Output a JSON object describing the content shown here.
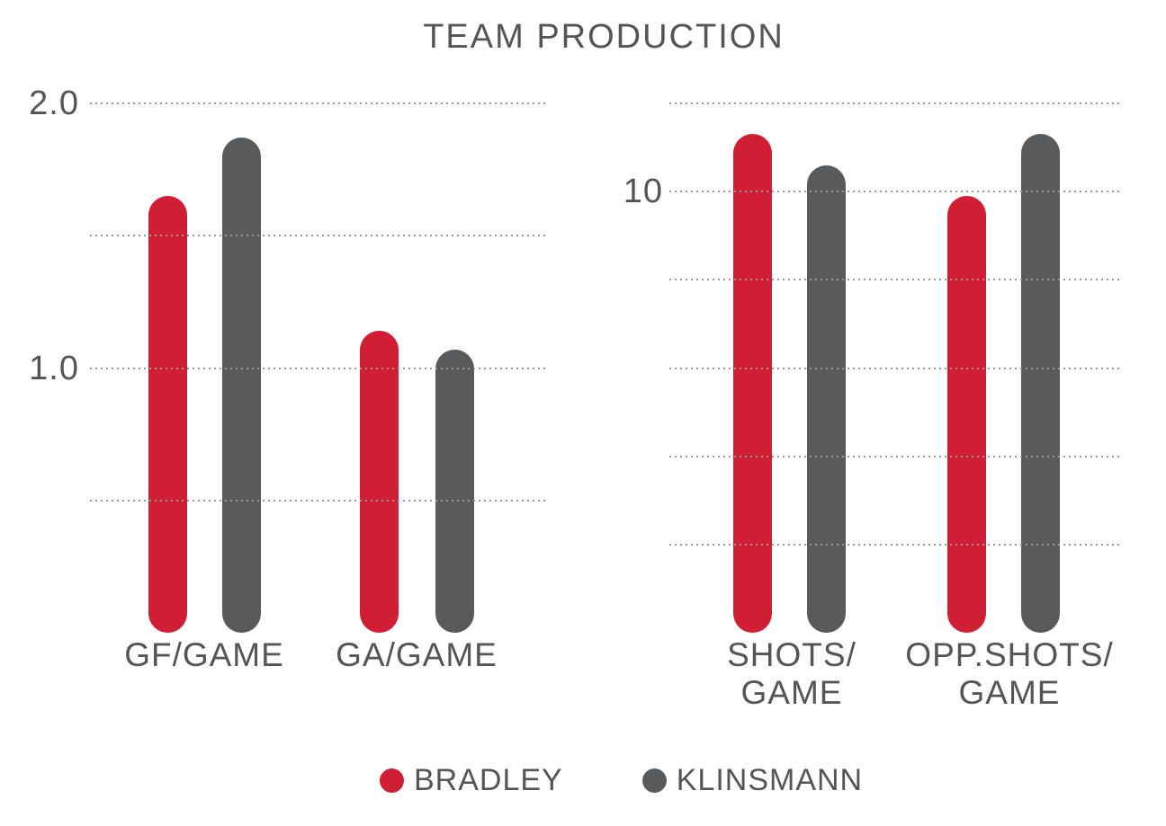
{
  "title": "TEAM PRODUCTION",
  "colors": {
    "bradley": "#d01e35",
    "klinsmann": "#595a5c",
    "gridline": "#98989a",
    "text": "#545557"
  },
  "legend": [
    {
      "label": "BRADLEY",
      "color": "#d01e35"
    },
    {
      "label": "KLINSMANN",
      "color": "#595a5c"
    }
  ],
  "chart_data": [
    {
      "type": "bar",
      "panel": "goals",
      "categories": [
        "GF/GAME",
        "GA/GAME"
      ],
      "category_lines": [
        [
          "GF/GAME"
        ],
        [
          "GA/GAME"
        ]
      ],
      "series": [
        {
          "name": "BRADLEY",
          "color": "#d01e35",
          "values": [
            1.65,
            1.14
          ]
        },
        {
          "name": "KLINSMANN",
          "color": "#595a5c",
          "values": [
            1.87,
            1.07
          ]
        }
      ],
      "ylim": [
        0,
        2.0
      ],
      "yticks": [
        2.0,
        1.5,
        1.0,
        0.5
      ],
      "ytick_labels": [
        {
          "value": 2.0,
          "label": "2.0"
        },
        {
          "value": 1.0,
          "label": "1.0"
        }
      ],
      "grid": "dotted-horizontal",
      "legend_position": "bottom"
    },
    {
      "type": "bar",
      "panel": "shots",
      "categories": [
        "SHOTS/GAME",
        "OPP.SHOTS/GAME"
      ],
      "category_lines": [
        [
          "SHOTS/",
          "GAME"
        ],
        [
          "OPP.SHOTS/",
          "GAME"
        ]
      ],
      "series": [
        {
          "name": "BRADLEY",
          "color": "#d01e35",
          "values": [
            11.3,
            9.9
          ]
        },
        {
          "name": "KLINSMANN",
          "color": "#595a5c",
          "values": [
            10.6,
            11.3
          ]
        }
      ],
      "ylim": [
        0,
        12
      ],
      "yticks": [
        12,
        10,
        8,
        6,
        4,
        2
      ],
      "ytick_labels": [
        {
          "value": 10,
          "label": "10"
        }
      ],
      "grid": "dotted-horizontal",
      "legend_position": "bottom"
    }
  ]
}
